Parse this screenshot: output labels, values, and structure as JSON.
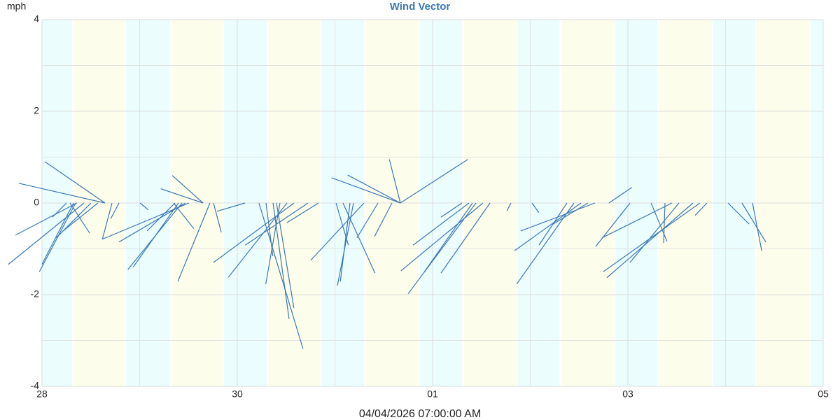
{
  "chart_data": {
    "type": "vector",
    "title": "Wind Vector",
    "y_label": "mph",
    "x_label": "04/04/2026 07:00:00 AM",
    "color": "#3a78b5",
    "grid": true,
    "xlim": [
      0,
      8
    ],
    "xticks": [
      {
        "value": 0,
        "label": "28"
      },
      {
        "value": 2,
        "label": "30"
      },
      {
        "value": 4,
        "label": "01"
      },
      {
        "value": 6,
        "label": "03"
      },
      {
        "value": 8,
        "label": "05"
      }
    ],
    "minor_xticks": [
      1,
      3,
      5,
      7
    ],
    "ylim": [
      -4,
      4
    ],
    "yticks": [
      -4,
      -2,
      0,
      2,
      4
    ],
    "minor_yticks": [
      -3,
      -1,
      1,
      3
    ],
    "bands": [
      {
        "start": 0,
        "end": 0.31,
        "color": "#ebfdfd"
      },
      {
        "start": 0.33,
        "end": 0.85,
        "color": "#fdfdec"
      },
      {
        "start": 0.86,
        "end": 1.31,
        "color": "#ebfdfd"
      },
      {
        "start": 1.33,
        "end": 1.85,
        "color": "#fdfdec"
      },
      {
        "start": 1.86,
        "end": 2.3,
        "color": "#ebfdfd"
      },
      {
        "start": 2.32,
        "end": 2.85,
        "color": "#fdfdec"
      },
      {
        "start": 2.86,
        "end": 3.3,
        "color": "#ebfdfd"
      },
      {
        "start": 3.32,
        "end": 3.86,
        "color": "#fdfdec"
      },
      {
        "start": 3.87,
        "end": 4.3,
        "color": "#ebfdfd"
      },
      {
        "start": 4.32,
        "end": 4.86,
        "color": "#fdfdec"
      },
      {
        "start": 4.87,
        "end": 5.3,
        "color": "#ebfdfd"
      },
      {
        "start": 5.32,
        "end": 5.86,
        "color": "#fdfdec"
      },
      {
        "start": 5.87,
        "end": 6.3,
        "color": "#ebfdfd"
      },
      {
        "start": 6.32,
        "end": 6.86,
        "color": "#fdfdec"
      },
      {
        "start": 6.87,
        "end": 7.3,
        "color": "#ebfdfd"
      },
      {
        "start": 7.32,
        "end": 7.86,
        "color": "#fdfdec"
      },
      {
        "start": 7.87,
        "end": 8,
        "color": "#ebfdfd"
      }
    ],
    "x": [
      0.645,
      0.645,
      0.43,
      0.358,
      0.344,
      0.323,
      0.502,
      0.287,
      0.251,
      0.573,
      0.789,
      0.717,
      1.649,
      1.649,
      1.505,
      1.47,
      1.434,
      1.398,
      1.362,
      1.348,
      1.72,
      1.756,
      1.004,
      2.079,
      2.581,
      2.509,
      2.437,
      2.366,
      2.401,
      2.222,
      2.294,
      2.724,
      2.832,
      3.67,
      3.67,
      3.67,
      3.67,
      3.297,
      3.19,
      3.154,
      3.082,
      3.011,
      3.441,
      3.584,
      4.444,
      4.516,
      4.373,
      4.409,
      4.588,
      4.301,
      4.803,
      5.018,
      5.52,
      5.448,
      5.663,
      5.376,
      5.591,
      5.806,
      6.022,
      6.738,
      6.667,
      6.523,
      6.38,
      6.237,
      6.452,
      7.276,
      7.168,
      7.025,
      6.81
    ],
    "u": [
      -1.31,
      -1.88,
      -1.65,
      -1.34,
      -0.79,
      -0.69,
      -0.76,
      0.43,
      -0.31,
      -0.76,
      -0.18,
      -0.21,
      -0.67,
      -0.92,
      -1.89,
      -1.45,
      -1.18,
      -0.99,
      -0.61,
      0.44,
      -0.7,
      0.17,
      0.18,
      -0.61,
      -1.76,
      -1.28,
      -0.31,
      0.35,
      0.38,
      0.96,
      0.15,
      -1.37,
      -0.69,
      -1.5,
      -1.15,
      -0.24,
      1.47,
      -1.16,
      -0.35,
      -0.21,
      0.7,
      0.27,
      -0.46,
      -0.38,
      -1.48,
      -1.79,
      -1.22,
      -1.05,
      -1.07,
      -0.46,
      -0.09,
      0.15,
      -1.45,
      -1.25,
      -1.62,
      -0.61,
      -0.76,
      0.5,
      -0.75,
      -2.11,
      -1.88,
      -1.07,
      -0.03,
      0.35,
      -1.53,
      0.2,
      0.52,
      0.46,
      -0.26
    ],
    "v": [
      0.9,
      0.43,
      -1.34,
      -0.7,
      -1.5,
      -1.34,
      -0.76,
      -0.66,
      -0.31,
      -0.61,
      -0.34,
      -0.79,
      0.6,
      0.31,
      -0.79,
      -0.85,
      -1.45,
      -1.4,
      -0.61,
      -0.56,
      -1.71,
      -0.64,
      -0.15,
      -0.18,
      -1.3,
      -1.62,
      -1.77,
      -2.53,
      -2.29,
      -3.18,
      -1.16,
      -0.92,
      -0.43,
      0.55,
      0.61,
      0.95,
      0.95,
      -1.25,
      -1.8,
      -1.71,
      -1.53,
      -0.92,
      -0.76,
      -0.73,
      -1.98,
      -1.48,
      -0.92,
      -1.5,
      -1.53,
      -0.31,
      -0.17,
      -0.21,
      -1.04,
      -1.77,
      -0.61,
      -0.92,
      -0.46,
      0.34,
      -0.95,
      -1.5,
      -1.63,
      -1.3,
      -0.87,
      -0.84,
      -0.76,
      -1.04,
      -0.85,
      -0.46,
      -0.27
    ]
  }
}
